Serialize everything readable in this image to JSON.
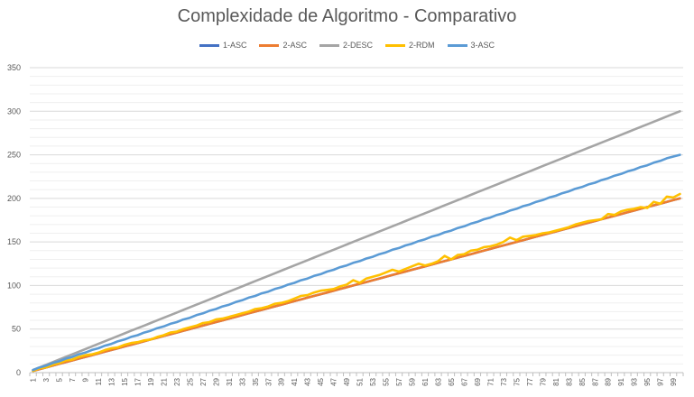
{
  "chart_data": {
    "type": "line",
    "title": "Complexidade de Algoritmo - Comparativo",
    "xlabel": "",
    "ylabel": "",
    "ylim": [
      0,
      350
    ],
    "yticks": [
      0,
      50,
      100,
      150,
      200,
      250,
      300,
      350
    ],
    "x": [
      1,
      2,
      3,
      4,
      5,
      6,
      7,
      8,
      9,
      10,
      11,
      12,
      13,
      14,
      15,
      16,
      17,
      18,
      19,
      20,
      21,
      22,
      23,
      24,
      25,
      26,
      27,
      28,
      29,
      30,
      31,
      32,
      33,
      34,
      35,
      36,
      37,
      38,
      39,
      40,
      41,
      42,
      43,
      44,
      45,
      46,
      47,
      48,
      49,
      50,
      51,
      52,
      53,
      54,
      55,
      56,
      57,
      58,
      59,
      60,
      61,
      62,
      63,
      64,
      65,
      66,
      67,
      68,
      69,
      70,
      71,
      72,
      73,
      74,
      75,
      76,
      77,
      78,
      79,
      80,
      81,
      82,
      83,
      84,
      85,
      86,
      87,
      88,
      89,
      90,
      91,
      92,
      93,
      94,
      95,
      96,
      97,
      98,
      99,
      100
    ],
    "xtick_labels": [
      "1",
      "3",
      "5",
      "7",
      "9",
      "11",
      "13",
      "15",
      "17",
      "19",
      "21",
      "23",
      "25",
      "27",
      "29",
      "31",
      "33",
      "35",
      "37",
      "39",
      "41",
      "43",
      "45",
      "47",
      "49",
      "51",
      "53",
      "55",
      "57",
      "59",
      "61",
      "63",
      "65",
      "67",
      "69",
      "71",
      "73",
      "75",
      "77",
      "79",
      "81",
      "83",
      "85",
      "87",
      "89",
      "91",
      "93",
      "95",
      "97",
      "99"
    ],
    "legend_position": "top",
    "grid": true,
    "series": [
      {
        "name": "1-ASC",
        "color": "#4472c4",
        "values": [
          2,
          4,
          6,
          8,
          10,
          12,
          14,
          16,
          18,
          20,
          22,
          24,
          26,
          28,
          30,
          32,
          34,
          36,
          38,
          40,
          42,
          44,
          46,
          48,
          50,
          52,
          54,
          56,
          58,
          60,
          62,
          64,
          66,
          68,
          70,
          72,
          74,
          76,
          78,
          80,
          82,
          84,
          86,
          88,
          90,
          92,
          94,
          96,
          98,
          100,
          102,
          104,
          106,
          108,
          110,
          112,
          114,
          116,
          118,
          120,
          122,
          124,
          126,
          128,
          130,
          132,
          134,
          136,
          138,
          140,
          142,
          144,
          146,
          148,
          150,
          152,
          154,
          156,
          158,
          160,
          162,
          164,
          166,
          168,
          170,
          172,
          174,
          176,
          178,
          180,
          182,
          184,
          186,
          188,
          190,
          192,
          194,
          196,
          198,
          200
        ]
      },
      {
        "name": "2-ASC",
        "color": "#ed7d31",
        "values": [
          2,
          4,
          6,
          8,
          10,
          12,
          14,
          16,
          18,
          20,
          22,
          24,
          26,
          28,
          30,
          32,
          34,
          36,
          38,
          40,
          42,
          44,
          46,
          48,
          50,
          52,
          54,
          56,
          58,
          60,
          62,
          64,
          66,
          68,
          70,
          72,
          74,
          76,
          78,
          80,
          82,
          84,
          86,
          88,
          90,
          92,
          94,
          96,
          98,
          100,
          102,
          104,
          106,
          108,
          110,
          112,
          114,
          116,
          118,
          120,
          122,
          124,
          126,
          128,
          130,
          132,
          134,
          136,
          138,
          140,
          142,
          144,
          146,
          148,
          150,
          152,
          154,
          156,
          158,
          160,
          162,
          164,
          166,
          168,
          170,
          172,
          174,
          176,
          178,
          180,
          182,
          184,
          186,
          188,
          190,
          192,
          194,
          196,
          198,
          200
        ]
      },
      {
        "name": "2-DESC",
        "color": "#a5a5a5",
        "values": [
          3,
          6,
          9,
          12,
          15,
          18,
          21,
          24,
          27,
          30,
          33,
          36,
          39,
          42,
          45,
          48,
          51,
          54,
          57,
          60,
          63,
          66,
          69,
          72,
          75,
          78,
          81,
          84,
          87,
          90,
          93,
          96,
          99,
          102,
          105,
          108,
          111,
          114,
          117,
          120,
          123,
          126,
          129,
          132,
          135,
          138,
          141,
          144,
          147,
          150,
          153,
          156,
          159,
          162,
          165,
          168,
          171,
          174,
          177,
          180,
          183,
          186,
          189,
          192,
          195,
          198,
          201,
          204,
          207,
          210,
          213,
          216,
          219,
          222,
          225,
          228,
          231,
          234,
          237,
          240,
          243,
          246,
          249,
          252,
          255,
          258,
          261,
          264,
          267,
          270,
          273,
          276,
          279,
          282,
          285,
          288,
          291,
          294,
          297,
          300
        ]
      },
      {
        "name": "2-RDM",
        "color": "#ffc000",
        "values": [
          2,
          5,
          6,
          9,
          11,
          14,
          15,
          18,
          20,
          21,
          23,
          26,
          28,
          29,
          32,
          34,
          35,
          37,
          38,
          41,
          43,
          46,
          47,
          50,
          52,
          54,
          57,
          58,
          61,
          62,
          64,
          66,
          68,
          70,
          73,
          74,
          76,
          79,
          80,
          82,
          85,
          88,
          89,
          92,
          94,
          95,
          96,
          99,
          101,
          106,
          103,
          108,
          110,
          112,
          115,
          118,
          116,
          119,
          122,
          125,
          123,
          125,
          128,
          134,
          130,
          135,
          136,
          140,
          141,
          144,
          145,
          147,
          150,
          155,
          152,
          156,
          157,
          158,
          160,
          161,
          163,
          165,
          167,
          170,
          172,
          174,
          175,
          176,
          182,
          181,
          185,
          187,
          188,
          190,
          189,
          196,
          194,
          202,
          201,
          205
        ]
      },
      {
        "name": "3-ASC",
        "color": "#5b9bd5",
        "values": [
          3,
          6,
          8,
          11,
          13,
          16,
          18,
          21,
          23,
          26,
          28,
          31,
          33,
          36,
          38,
          41,
          43,
          46,
          48,
          51,
          53,
          56,
          58,
          61,
          63,
          66,
          68,
          71,
          73,
          76,
          78,
          81,
          83,
          86,
          88,
          91,
          93,
          96,
          98,
          101,
          103,
          106,
          108,
          111,
          113,
          116,
          118,
          121,
          123,
          126,
          128,
          131,
          133,
          136,
          138,
          141,
          143,
          146,
          148,
          151,
          153,
          156,
          158,
          161,
          163,
          166,
          168,
          171,
          173,
          176,
          178,
          181,
          183,
          186,
          188,
          191,
          193,
          196,
          198,
          201,
          203,
          206,
          208,
          211,
          213,
          216,
          218,
          221,
          223,
          226,
          228,
          231,
          233,
          236,
          238,
          241,
          243,
          246,
          248,
          250
        ]
      }
    ]
  }
}
